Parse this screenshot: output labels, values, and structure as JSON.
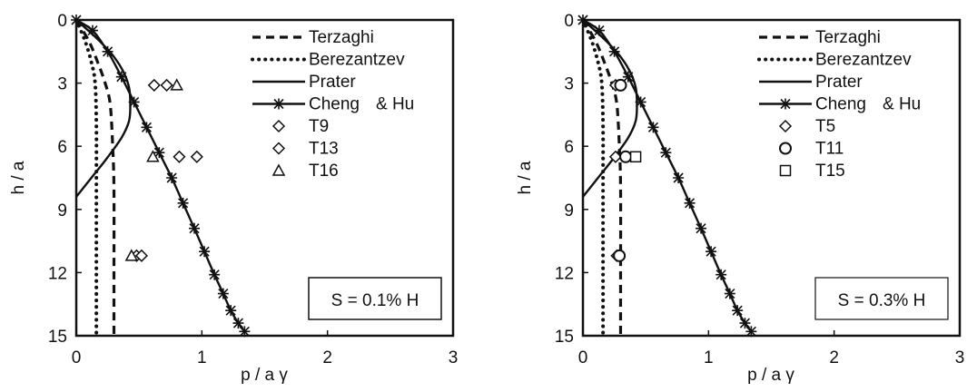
{
  "chart_data": [
    {
      "type": "line",
      "xlabel": "p / a γ",
      "ylabel": "h / a",
      "xlim": [
        0,
        3
      ],
      "ylim": [
        15,
        0
      ],
      "y_inverted": true,
      "x_ticks": [
        0,
        1,
        2,
        3
      ],
      "y_ticks": [
        0,
        3,
        6,
        9,
        12,
        15
      ],
      "x_tick_labels": [
        "0",
        "1",
        "2",
        "3"
      ],
      "y_tick_labels": [
        "0",
        "3",
        "6",
        "9",
        "12",
        "15"
      ],
      "grid": false,
      "legend_placement": "top-right",
      "annotation": "S = 0.1% H",
      "series": [
        {
          "name": "Terzaghi",
          "style": "dashed",
          "x": [
            0,
            0.1,
            0.17,
            0.23,
            0.27,
            0.29,
            0.3,
            0.3,
            0.3
          ],
          "y": [
            0,
            1,
            2,
            3,
            4,
            6,
            8,
            12,
            15
          ]
        },
        {
          "name": "Berezantzev",
          "style": "dotted",
          "x": [
            0,
            0.07,
            0.12,
            0.15,
            0.16,
            0.16,
            0.16,
            0.16
          ],
          "y": [
            0,
            1,
            2,
            3,
            5,
            8,
            12,
            15
          ]
        },
        {
          "name": "Prater",
          "style": "solid",
          "x": [
            0,
            0.15,
            0.28,
            0.37,
            0.42,
            0.43,
            0.42,
            0.36,
            0.24,
            0.12,
            0
          ],
          "y": [
            0,
            0.8,
            1.6,
            2.4,
            3.2,
            4,
            4.8,
            5.6,
            6.6,
            7.5,
            8.4
          ]
        },
        {
          "name": "Cheng",
          "style": "solid-asterisk",
          "x": [
            0,
            0.13,
            0.25,
            0.36,
            0.46,
            0.56,
            0.66,
            0.76,
            0.85,
            0.94,
            1.02,
            1.1,
            1.17,
            1.23,
            1.29,
            1.34
          ],
          "y": [
            0,
            0.5,
            1.5,
            2.7,
            3.9,
            5.1,
            6.3,
            7.5,
            8.7,
            9.9,
            11.0,
            12.1,
            13.0,
            13.8,
            14.4,
            14.8
          ]
        },
        {
          "name": "T9",
          "style": "marker-diamond",
          "x": [
            0.62,
            0.72,
            0.82,
            0.48
          ],
          "y": [
            3.1,
            3.1,
            6.5,
            11.2
          ]
        },
        {
          "name": "T13",
          "style": "marker-diamond",
          "x": [
            0.96,
            0.52
          ],
          "y": [
            6.5,
            11.2
          ]
        },
        {
          "name": "T16",
          "style": "marker-triangle",
          "x": [
            0.8,
            0.61,
            0.44
          ],
          "y": [
            3.1,
            6.5,
            11.2
          ]
        }
      ],
      "legend": [
        "Terzaghi",
        "Berezantzev",
        "Prater",
        "Cheng",
        "T9",
        "T13",
        "T16"
      ],
      "legend_extra": "& Hu"
    },
    {
      "type": "line",
      "xlabel": "p / a γ",
      "ylabel": "h / a",
      "xlim": [
        0,
        3
      ],
      "ylim": [
        15,
        0
      ],
      "y_inverted": true,
      "x_ticks": [
        0,
        1,
        2,
        3
      ],
      "y_ticks": [
        0,
        3,
        6,
        9,
        12,
        15
      ],
      "x_tick_labels": [
        "0",
        "1",
        "2",
        "3"
      ],
      "y_tick_labels": [
        "0",
        "3",
        "6",
        "9",
        "12",
        "15"
      ],
      "grid": false,
      "legend_placement": "top-right",
      "annotation": "S = 0.3% H",
      "series": [
        {
          "name": "Terzaghi",
          "style": "dashed",
          "x": [
            0,
            0.1,
            0.17,
            0.23,
            0.27,
            0.29,
            0.3,
            0.3,
            0.3
          ],
          "y": [
            0,
            1,
            2,
            3,
            4,
            6,
            8,
            12,
            15
          ]
        },
        {
          "name": "Berezantzev",
          "style": "dotted",
          "x": [
            0,
            0.07,
            0.12,
            0.15,
            0.16,
            0.16,
            0.16,
            0.16
          ],
          "y": [
            0,
            1,
            2,
            3,
            5,
            8,
            12,
            15
          ]
        },
        {
          "name": "Prater",
          "style": "solid",
          "x": [
            0,
            0.15,
            0.28,
            0.37,
            0.42,
            0.43,
            0.42,
            0.36,
            0.24,
            0.12,
            0
          ],
          "y": [
            0,
            0.8,
            1.6,
            2.4,
            3.2,
            4,
            4.8,
            5.6,
            6.6,
            7.5,
            8.4
          ]
        },
        {
          "name": "Cheng",
          "style": "solid-asterisk",
          "x": [
            0,
            0.13,
            0.25,
            0.36,
            0.46,
            0.56,
            0.66,
            0.76,
            0.85,
            0.94,
            1.02,
            1.1,
            1.17,
            1.23,
            1.29,
            1.34
          ],
          "y": [
            0,
            0.5,
            1.5,
            2.7,
            3.9,
            5.1,
            6.3,
            7.5,
            8.7,
            9.9,
            11.0,
            12.1,
            13.0,
            13.8,
            14.4,
            14.8
          ]
        },
        {
          "name": "T5",
          "style": "marker-diamond",
          "x": [
            0.26,
            0.26,
            0.27
          ],
          "y": [
            3.1,
            6.5,
            11.2
          ]
        },
        {
          "name": "T11",
          "style": "marker-circle",
          "x": [
            0.3,
            0.34,
            0.29
          ],
          "y": [
            3.1,
            6.5,
            11.2
          ]
        },
        {
          "name": "T15",
          "style": "marker-square",
          "x": [
            0.42
          ],
          "y": [
            6.5
          ]
        }
      ],
      "legend": [
        "Terzaghi",
        "Berezantzev",
        "Prater",
        "Cheng",
        "T5",
        "T11",
        "T15"
      ],
      "legend_extra": "& Hu"
    }
  ]
}
